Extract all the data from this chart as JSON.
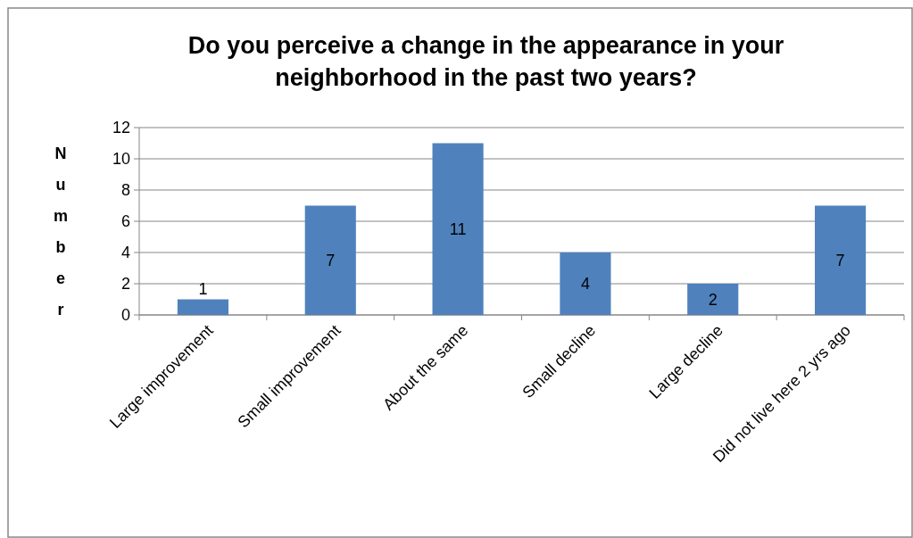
{
  "chart_data": {
    "type": "bar",
    "title": "Do you perceive a change in the appearance in your neighborhood in the past two years?",
    "ylabel": "Number",
    "categories": [
      "Large improvement",
      "Small improvement",
      "About the same",
      "Small decline",
      "Large decline",
      "Did not live here 2 yrs ago"
    ],
    "values": [
      1,
      7,
      11,
      4,
      2,
      7
    ],
    "color": "#4f81bd",
    "ylim": [
      0,
      12
    ],
    "yticks": [
      0,
      2,
      4,
      6,
      8,
      10,
      12
    ],
    "grid": "y",
    "data_labels": true
  }
}
